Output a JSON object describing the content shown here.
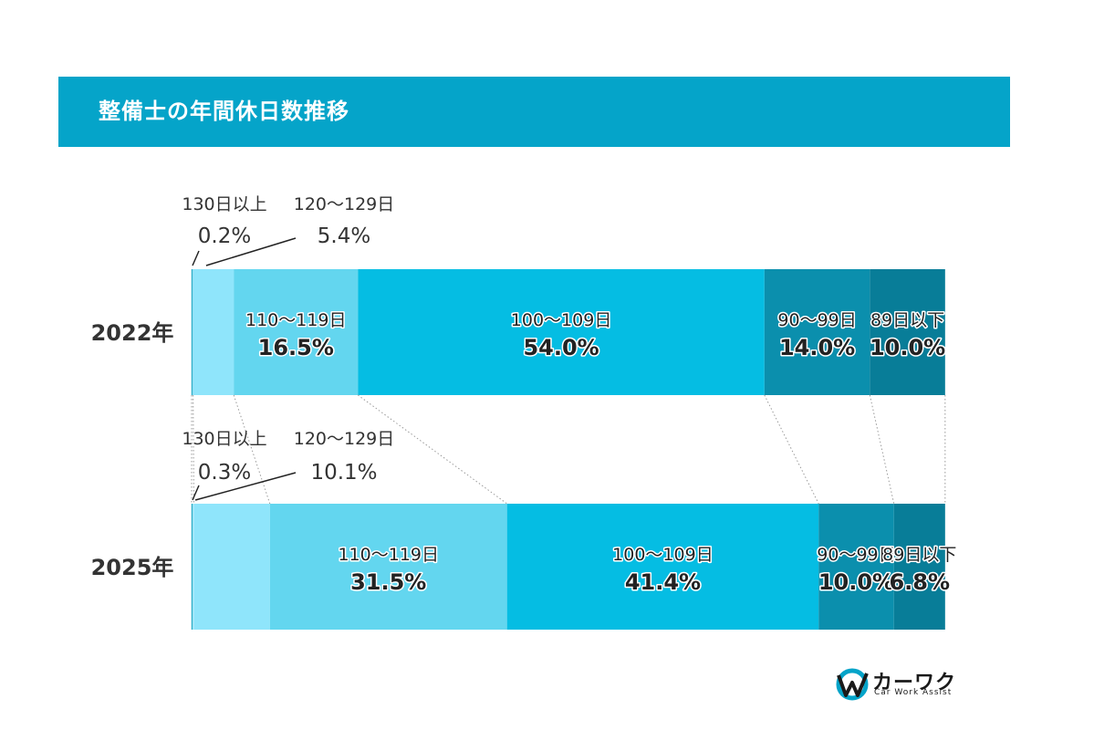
{
  "header": {
    "title": "整備士の年間休日数推移",
    "band_color": "#05a4c9"
  },
  "chart_data": {
    "type": "bar",
    "orientation": "horizontal-stacked-100",
    "categories": [
      "2022年",
      "2025年"
    ],
    "series": [
      {
        "name": "130日以上",
        "values": [
          0.2,
          0.3
        ],
        "color": "#b9f0fc"
      },
      {
        "name": "120〜129日",
        "values": [
          5.4,
          10.1
        ],
        "color": "#8fe5fb"
      },
      {
        "name": "110〜119日",
        "values": [
          16.5,
          31.5
        ],
        "color": "#63d6ef"
      },
      {
        "name": "100〜109日",
        "values": [
          54.0,
          41.4
        ],
        "color": "#05bde3"
      },
      {
        "name": "90〜99日",
        "values": [
          14.0,
          10.0
        ],
        "color": "#0b8fad"
      },
      {
        "name": "89日以下",
        "values": [
          10.0,
          6.8
        ],
        "color": "#087d98"
      }
    ],
    "value_labels": [
      [
        "0.2%",
        "5.4%",
        "16.5%",
        "54.0%",
        "14.0%",
        "10.0%"
      ],
      [
        "0.3%",
        "10.1%",
        "31.5%",
        "41.4%",
        "10.0%",
        "6.8%"
      ]
    ],
    "title": "整備士の年間休日数推移",
    "xlim": [
      0,
      100
    ],
    "unit": "%",
    "grid": false,
    "legend": "none"
  },
  "logo": {
    "name": "カーワク",
    "sub": "Car Work Assist"
  }
}
